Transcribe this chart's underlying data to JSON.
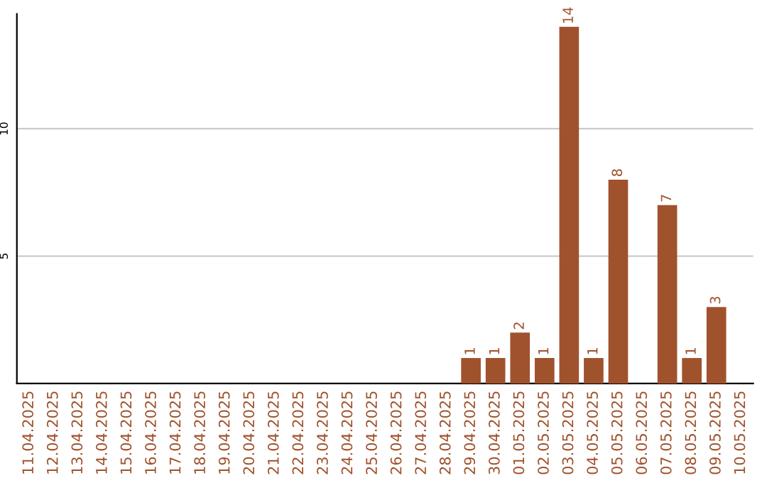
{
  "chart_data": {
    "type": "bar",
    "categories": [
      "11.04.2025",
      "12.04.2025",
      "13.04.2025",
      "14.04.2025",
      "15.04.2025",
      "16.04.2025",
      "17.04.2025",
      "18.04.2025",
      "19.04.2025",
      "20.04.2025",
      "21.04.2025",
      "22.04.2025",
      "23.04.2025",
      "24.04.2025",
      "25.04.2025",
      "26.04.2025",
      "27.04.2025",
      "28.04.2025",
      "29.04.2025",
      "30.04.2025",
      "01.05.2025",
      "02.05.2025",
      "03.05.2025",
      "04.05.2025",
      "05.05.2025",
      "06.05.2025",
      "07.05.2025",
      "08.05.2025",
      "09.05.2025",
      "10.05.2025"
    ],
    "values": [
      0,
      0,
      0,
      0,
      0,
      0,
      0,
      0,
      0,
      0,
      0,
      0,
      0,
      0,
      0,
      0,
      0,
      0,
      1,
      1,
      2,
      1,
      14,
      1,
      8,
      0,
      7,
      1,
      3,
      0
    ],
    "value_labels": [
      null,
      null,
      null,
      null,
      null,
      null,
      null,
      null,
      null,
      null,
      null,
      null,
      null,
      null,
      null,
      null,
      null,
      null,
      "1",
      "1",
      "2",
      "1",
      "14",
      "1",
      "8",
      null,
      "7",
      "1",
      "3",
      null
    ],
    "color": "#a0522d",
    "ylim": [
      0,
      14.5
    ],
    "yticks": [
      5,
      10
    ],
    "grid": "y"
  }
}
